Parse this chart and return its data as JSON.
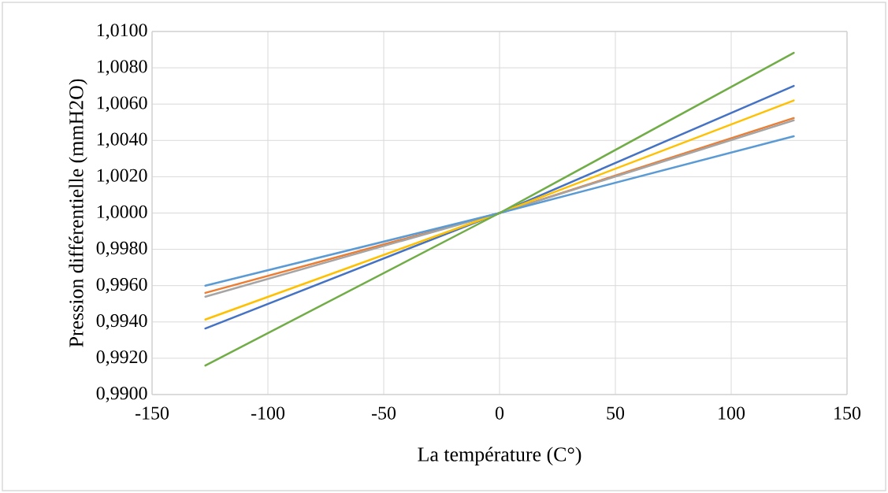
{
  "chart_data": {
    "type": "line",
    "xlabel": "La température (C°)",
    "ylabel": "Pression différentielle (mmH2O)",
    "x": [
      -127,
      0,
      127
    ],
    "series": [
      {
        "color": "#4472c4",
        "values": [
          0.99364,
          1.0,
          1.007
        ]
      },
      {
        "color": "#ed7d31",
        "values": [
          0.9956,
          1.0,
          1.00523
        ]
      },
      {
        "color": "#a5a5a5",
        "values": [
          0.99539,
          1.0,
          1.00511
        ]
      },
      {
        "color": "#ffc000",
        "values": [
          0.99413,
          1.0,
          1.0062
        ]
      },
      {
        "color": "#5b9bd5",
        "values": [
          0.996,
          1.0,
          1.00423
        ]
      },
      {
        "color": "#70ad47",
        "values": [
          0.9916,
          1.0,
          1.00882
        ]
      }
    ],
    "xlim": [
      -150,
      150
    ],
    "xticks": [
      -150,
      -100,
      -50,
      0,
      50,
      100,
      150
    ],
    "ylim": [
      0.99,
      1.01
    ],
    "yticks": [
      {
        "value": 0.99,
        "label": "0,9900"
      },
      {
        "value": 0.992,
        "label": "0,9920"
      },
      {
        "value": 0.994,
        "label": "0,9940"
      },
      {
        "value": 0.996,
        "label": "0,9960"
      },
      {
        "value": 0.998,
        "label": "0,9980"
      },
      {
        "value": 1.0,
        "label": "1,0000"
      },
      {
        "value": 1.002,
        "label": "1,0020"
      },
      {
        "value": 1.004,
        "label": "1,0040"
      },
      {
        "value": 1.006,
        "label": "1,0060"
      },
      {
        "value": 1.008,
        "label": "1,0080"
      },
      {
        "value": 1.01,
        "label": "1,0100"
      }
    ],
    "grid": true,
    "marker": "none",
    "line_style": "solid"
  }
}
